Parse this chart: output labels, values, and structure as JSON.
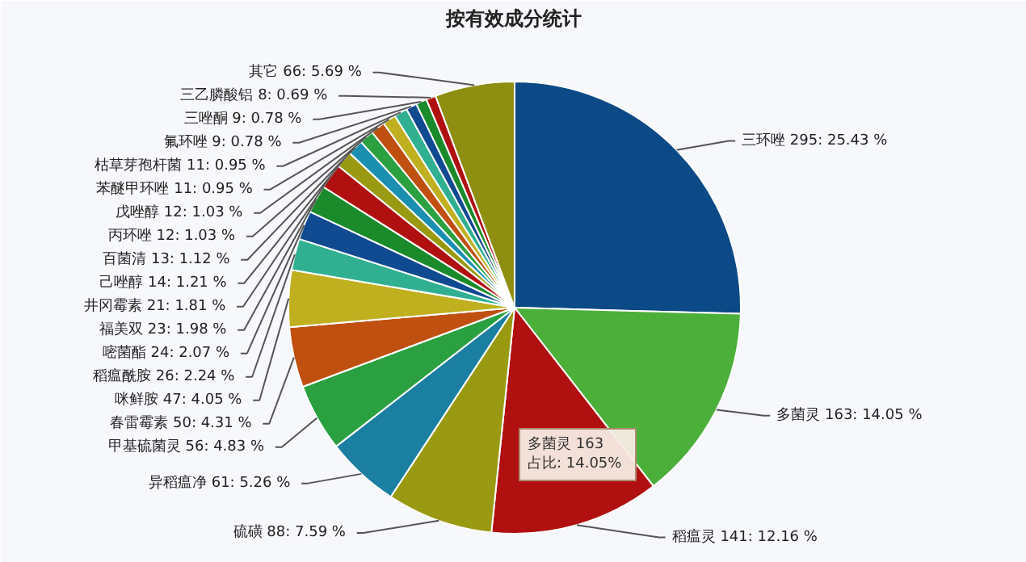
{
  "chart_data": {
    "type": "pie",
    "title": "按有效成分统计",
    "categories": [
      "三环唑",
      "多菌灵",
      "稻瘟灵",
      "硫磺",
      "异稻瘟净",
      "甲基硫菌灵",
      "春雷霉素",
      "咪鲜胺",
      "稻瘟酰胺",
      "嘧菌酯",
      "福美双",
      "井冈霉素",
      "己唑醇",
      "百菌清",
      "丙环唑",
      "戊唑醇",
      "苯醚甲环唑",
      "枯草芽孢杆菌",
      "氟环唑",
      "三唑酮",
      "三乙膦酸铝",
      "其它"
    ],
    "values": [
      295,
      163,
      141,
      88,
      61,
      56,
      50,
      47,
      26,
      24,
      23,
      21,
      14,
      13,
      12,
      12,
      11,
      11,
      9,
      9,
      8,
      66
    ],
    "value_labels": [
      "295: 25.43 %",
      "163: 14.05 %",
      "141: 12.16 %",
      "88: 7.59 %",
      "61: 5.26 %",
      "56: 4.83 %",
      "50: 4.31 %",
      "47: 4.05 %",
      "26: 2.24 %",
      "24: 2.07 %",
      "23: 1.98 %",
      "21: 1.81 %",
      "14: 1.21 %",
      "13: 1.12 %",
      "12: 1.03 %",
      "12: 1.03 %",
      "11: 0.95 %",
      "11: 0.95 %",
      "9: 0.78 %",
      "9: 0.78 %",
      "8: 0.69 %",
      "66: 5.69 %"
    ],
    "colors": [
      "#0b4a86",
      "#4caf3a",
      "#b01010",
      "#9a9a12",
      "#1a7fa0",
      "#2aa040",
      "#c05010",
      "#c0b020",
      "#30b090",
      "#104a90",
      "#1a8a2a",
      "#b01010",
      "#9a9a12",
      "#1a8fb0",
      "#2aa040",
      "#c05010",
      "#c0b020",
      "#30b090",
      "#104a90",
      "#1a8a2a",
      "#b01010",
      "#8e8e10"
    ],
    "annotations": [
      "多菌灵 163\n占比: 14.05%"
    ]
  }
}
